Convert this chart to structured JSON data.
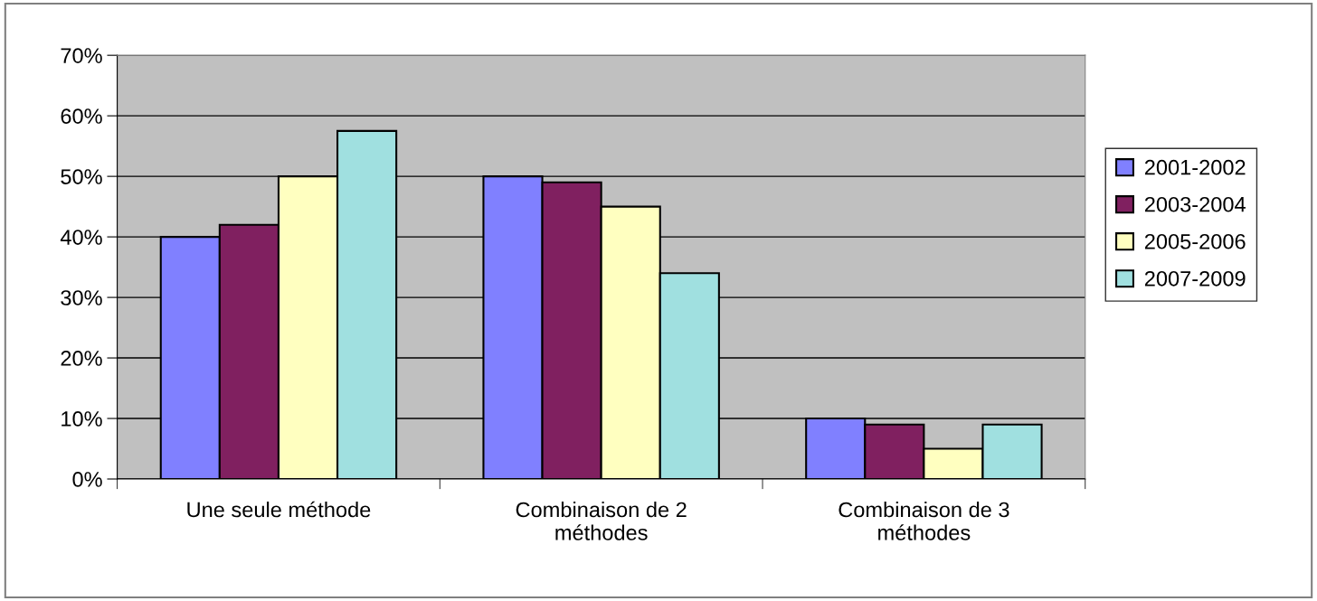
{
  "chart_data": {
    "type": "bar",
    "categories": [
      "Une seule méthode",
      "Combinaison de 2\nméthodes",
      "Combinaison de 3\nméthodes"
    ],
    "series": [
      {
        "name": "2001-2002",
        "color": "#8080ff",
        "values": [
          40,
          50,
          10
        ]
      },
      {
        "name": "2003-2004",
        "color": "#802060",
        "values": [
          42,
          49,
          9
        ]
      },
      {
        "name": "2005-2006",
        "color": "#ffffc0",
        "values": [
          50,
          45,
          5
        ]
      },
      {
        "name": "2007-2009",
        "color": "#a0e0e0",
        "values": [
          57.5,
          34,
          9
        ]
      }
    ],
    "ylim": [
      0,
      70
    ],
    "yticks": [
      {
        "value": 0,
        "label": "0%"
      },
      {
        "value": 10,
        "label": "10%"
      },
      {
        "value": 20,
        "label": "20%"
      },
      {
        "value": 30,
        "label": "30%"
      },
      {
        "value": 40,
        "label": "40%"
      },
      {
        "value": 50,
        "label": "50%"
      },
      {
        "value": 60,
        "label": "60%"
      },
      {
        "value": 70,
        "label": "70%"
      }
    ],
    "grid": "y",
    "legend": "right"
  }
}
